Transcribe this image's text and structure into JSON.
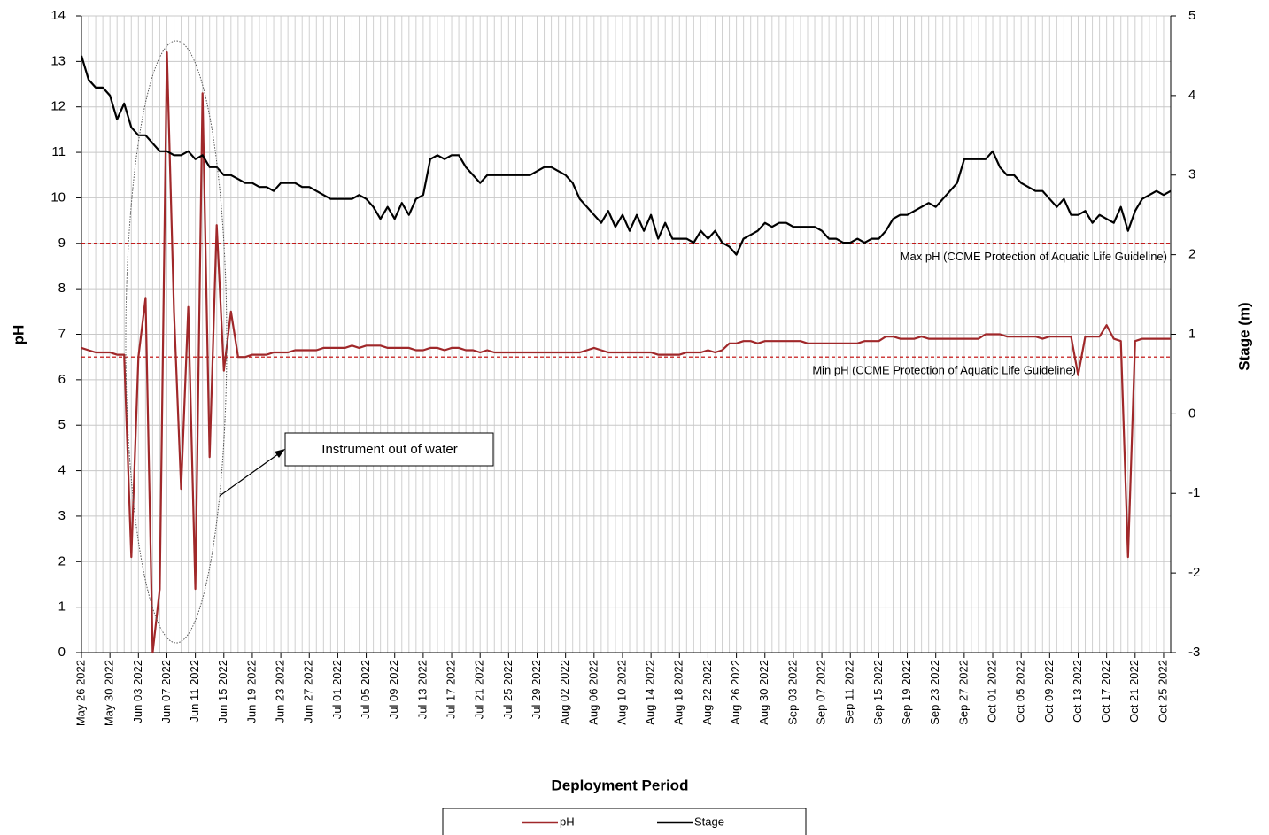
{
  "chart_data": {
    "type": "line",
    "x_label": "Deployment Period",
    "y_label": "pH",
    "y2_label": "Stage (m)",
    "xlim": [
      "2022-05-26",
      "2022-10-26"
    ],
    "ylim": [
      0,
      14
    ],
    "yticks": [
      0,
      1,
      2,
      3,
      4,
      5,
      6,
      7,
      8,
      9,
      10,
      11,
      12,
      13,
      14
    ],
    "y2lim": [
      -3,
      5
    ],
    "y2ticks": [
      -3,
      -2,
      -1,
      0,
      1,
      2,
      3,
      4,
      5
    ],
    "grid": true,
    "legend": "bottom",
    "xticks": [
      {
        "value": "2022-05-26",
        "label": "May 26 2022"
      },
      {
        "value": "2022-05-30",
        "label": "May 30 2022"
      },
      {
        "value": "2022-06-03",
        "label": "Jun 03 2022"
      },
      {
        "value": "2022-06-07",
        "label": "Jun 07 2022"
      },
      {
        "value": "2022-06-11",
        "label": "Jun 11 2022"
      },
      {
        "value": "2022-06-15",
        "label": "Jun 15 2022"
      },
      {
        "value": "2022-06-19",
        "label": "Jun 19 2022"
      },
      {
        "value": "2022-06-23",
        "label": "Jun 23 2022"
      },
      {
        "value": "2022-06-27",
        "label": "Jun 27 2022"
      },
      {
        "value": "2022-07-01",
        "label": "Jul 01 2022"
      },
      {
        "value": "2022-07-05",
        "label": "Jul 05 2022"
      },
      {
        "value": "2022-07-09",
        "label": "Jul 09 2022"
      },
      {
        "value": "2022-07-13",
        "label": "Jul 13 2022"
      },
      {
        "value": "2022-07-17",
        "label": "Jul 17 2022"
      },
      {
        "value": "2022-07-21",
        "label": "Jul 21 2022"
      },
      {
        "value": "2022-07-25",
        "label": "Jul 25 2022"
      },
      {
        "value": "2022-07-29",
        "label": "Jul 29 2022"
      },
      {
        "value": "2022-08-02",
        "label": "Aug 02 2022"
      },
      {
        "value": "2022-08-06",
        "label": "Aug 06 2022"
      },
      {
        "value": "2022-08-10",
        "label": "Aug 10 2022"
      },
      {
        "value": "2022-08-14",
        "label": "Aug 14 2022"
      },
      {
        "value": "2022-08-18",
        "label": "Aug 18 2022"
      },
      {
        "value": "2022-08-22",
        "label": "Aug 22 2022"
      },
      {
        "value": "2022-08-26",
        "label": "Aug 26 2022"
      },
      {
        "value": "2022-08-30",
        "label": "Aug 30 2022"
      },
      {
        "value": "2022-09-03",
        "label": "Sep 03 2022"
      },
      {
        "value": "2022-09-07",
        "label": "Sep 07 2022"
      },
      {
        "value": "2022-09-11",
        "label": "Sep 11 2022"
      },
      {
        "value": "2022-09-15",
        "label": "Sep 15 2022"
      },
      {
        "value": "2022-09-19",
        "label": "Sep 19 2022"
      },
      {
        "value": "2022-09-23",
        "label": "Sep 23 2022"
      },
      {
        "value": "2022-09-27",
        "label": "Sep 27 2022"
      },
      {
        "value": "2022-10-01",
        "label": "Oct 01 2022"
      },
      {
        "value": "2022-10-05",
        "label": "Oct 05 2022"
      },
      {
        "value": "2022-10-09",
        "label": "Oct 09 2022"
      },
      {
        "value": "2022-10-13",
        "label": "Oct 13 2022"
      },
      {
        "value": "2022-10-17",
        "label": "Oct 17 2022"
      },
      {
        "value": "2022-10-21",
        "label": "Oct 21 2022"
      },
      {
        "value": "2022-10-25",
        "label": "Oct 25 2022"
      }
    ],
    "x": [
      "2022-05-26",
      "2022-05-27",
      "2022-05-28",
      "2022-05-29",
      "2022-05-30",
      "2022-05-31",
      "2022-06-01",
      "2022-06-02",
      "2022-06-03",
      "2022-06-04",
      "2022-06-05",
      "2022-06-06",
      "2022-06-07",
      "2022-06-08",
      "2022-06-09",
      "2022-06-10",
      "2022-06-11",
      "2022-06-12",
      "2022-06-13",
      "2022-06-14",
      "2022-06-15",
      "2022-06-16",
      "2022-06-17",
      "2022-06-18",
      "2022-06-19",
      "2022-06-20",
      "2022-06-21",
      "2022-06-22",
      "2022-06-23",
      "2022-06-24",
      "2022-06-25",
      "2022-06-26",
      "2022-06-27",
      "2022-06-28",
      "2022-06-29",
      "2022-06-30",
      "2022-07-01",
      "2022-07-02",
      "2022-07-03",
      "2022-07-04",
      "2022-07-05",
      "2022-07-06",
      "2022-07-07",
      "2022-07-08",
      "2022-07-09",
      "2022-07-10",
      "2022-07-11",
      "2022-07-12",
      "2022-07-13",
      "2022-07-14",
      "2022-07-15",
      "2022-07-16",
      "2022-07-17",
      "2022-07-18",
      "2022-07-19",
      "2022-07-20",
      "2022-07-21",
      "2022-07-22",
      "2022-07-23",
      "2022-07-24",
      "2022-07-25",
      "2022-07-26",
      "2022-07-27",
      "2022-07-28",
      "2022-07-29",
      "2022-07-30",
      "2022-07-31",
      "2022-08-01",
      "2022-08-02",
      "2022-08-03",
      "2022-08-04",
      "2022-08-05",
      "2022-08-06",
      "2022-08-07",
      "2022-08-08",
      "2022-08-09",
      "2022-08-10",
      "2022-08-11",
      "2022-08-12",
      "2022-08-13",
      "2022-08-14",
      "2022-08-15",
      "2022-08-16",
      "2022-08-17",
      "2022-08-18",
      "2022-08-19",
      "2022-08-20",
      "2022-08-21",
      "2022-08-22",
      "2022-08-23",
      "2022-08-24",
      "2022-08-25",
      "2022-08-26",
      "2022-08-27",
      "2022-08-28",
      "2022-08-29",
      "2022-08-30",
      "2022-08-31",
      "2022-09-01",
      "2022-09-02",
      "2022-09-03",
      "2022-09-04",
      "2022-09-05",
      "2022-09-06",
      "2022-09-07",
      "2022-09-08",
      "2022-09-09",
      "2022-09-10",
      "2022-09-11",
      "2022-09-12",
      "2022-09-13",
      "2022-09-14",
      "2022-09-15",
      "2022-09-16",
      "2022-09-17",
      "2022-09-18",
      "2022-09-19",
      "2022-09-20",
      "2022-09-21",
      "2022-09-22",
      "2022-09-23",
      "2022-09-24",
      "2022-09-25",
      "2022-09-26",
      "2022-09-27",
      "2022-09-28",
      "2022-09-29",
      "2022-09-30",
      "2022-10-01",
      "2022-10-02",
      "2022-10-03",
      "2022-10-04",
      "2022-10-05",
      "2022-10-06",
      "2022-10-07",
      "2022-10-08",
      "2022-10-09",
      "2022-10-10",
      "2022-10-11",
      "2022-10-12",
      "2022-10-13",
      "2022-10-14",
      "2022-10-15",
      "2022-10-16",
      "2022-10-17",
      "2022-10-18",
      "2022-10-19",
      "2022-10-20",
      "2022-10-21",
      "2022-10-22",
      "2022-10-23",
      "2022-10-24",
      "2022-10-25",
      "2022-10-26"
    ],
    "series": [
      {
        "name": "pH",
        "color": "#a0282a",
        "values": [
          6.7,
          6.65,
          6.6,
          6.6,
          6.6,
          6.55,
          6.55,
          2.1,
          6.5,
          7.8,
          0,
          1.4,
          13.2,
          7.5,
          3.6,
          7.6,
          1.4,
          12.3,
          4.3,
          9.4,
          6.2,
          7.5,
          6.5,
          6.5,
          6.55,
          6.55,
          6.55,
          6.6,
          6.6,
          6.6,
          6.65,
          6.65,
          6.65,
          6.65,
          6.7,
          6.7,
          6.7,
          6.7,
          6.75,
          6.7,
          6.75,
          6.75,
          6.75,
          6.7,
          6.7,
          6.7,
          6.7,
          6.65,
          6.65,
          6.7,
          6.7,
          6.65,
          6.7,
          6.7,
          6.65,
          6.65,
          6.6,
          6.65,
          6.6,
          6.6,
          6.6,
          6.6,
          6.6,
          6.6,
          6.6,
          6.6,
          6.6,
          6.6,
          6.6,
          6.6,
          6.6,
          6.65,
          6.7,
          6.65,
          6.6,
          6.6,
          6.6,
          6.6,
          6.6,
          6.6,
          6.6,
          6.55,
          6.55,
          6.55,
          6.55,
          6.6,
          6.6,
          6.6,
          6.65,
          6.6,
          6.65,
          6.8,
          6.8,
          6.85,
          6.85,
          6.8,
          6.85,
          6.85,
          6.85,
          6.85,
          6.85,
          6.85,
          6.8,
          6.8,
          6.8,
          6.8,
          6.8,
          6.8,
          6.8,
          6.8,
          6.85,
          6.85,
          6.85,
          6.95,
          6.95,
          6.9,
          6.9,
          6.9,
          6.95,
          6.9,
          6.9,
          6.9,
          6.9,
          6.9,
          6.9,
          6.9,
          6.9,
          7.0,
          7.0,
          7.0,
          6.95,
          6.95,
          6.95,
          6.95,
          6.95,
          6.9,
          6.95,
          6.95,
          6.95,
          6.95,
          6.1,
          6.95,
          6.95,
          6.95,
          7.2,
          6.9,
          6.85,
          2.1,
          6.85,
          6.9,
          6.9,
          6.9,
          6.9,
          6.9
        ]
      },
      {
        "name": "Stage",
        "color": "#000000",
        "axis": "y2",
        "values": [
          4.5,
          4.2,
          4.1,
          4.1,
          4.0,
          3.7,
          3.9,
          3.6,
          3.5,
          3.5,
          3.4,
          3.3,
          3.3,
          3.25,
          3.25,
          3.3,
          3.2,
          3.25,
          3.1,
          3.1,
          3.0,
          3.0,
          2.95,
          2.9,
          2.9,
          2.85,
          2.85,
          2.8,
          2.9,
          2.9,
          2.9,
          2.85,
          2.85,
          2.8,
          2.75,
          2.7,
          2.7,
          2.7,
          2.7,
          2.75,
          2.7,
          2.6,
          2.45,
          2.6,
          2.45,
          2.65,
          2.5,
          2.7,
          2.75,
          3.2,
          3.25,
          3.2,
          3.25,
          3.25,
          3.1,
          3.0,
          2.9,
          3.0,
          3.0,
          3.0,
          3.0,
          3.0,
          3.0,
          3.0,
          3.05,
          3.1,
          3.1,
          3.05,
          3.0,
          2.9,
          2.7,
          2.6,
          2.5,
          2.4,
          2.55,
          2.35,
          2.5,
          2.3,
          2.5,
          2.3,
          2.5,
          2.2,
          2.4,
          2.2,
          2.2,
          2.2,
          2.15,
          2.3,
          2.2,
          2.3,
          2.15,
          2.1,
          2.0,
          2.2,
          2.25,
          2.3,
          2.4,
          2.35,
          2.4,
          2.4,
          2.35,
          2.35,
          2.35,
          2.35,
          2.3,
          2.2,
          2.2,
          2.15,
          2.15,
          2.2,
          2.15,
          2.2,
          2.2,
          2.3,
          2.45,
          2.5,
          2.5,
          2.55,
          2.6,
          2.65,
          2.6,
          2.7,
          2.8,
          2.9,
          3.2,
          3.2,
          3.2,
          3.2,
          3.3,
          3.1,
          3.0,
          3.0,
          2.9,
          2.85,
          2.8,
          2.8,
          2.7,
          2.6,
          2.7,
          2.5,
          2.5,
          2.55,
          2.4,
          2.5,
          2.45,
          2.4,
          2.6,
          2.3,
          2.55,
          2.7,
          2.75,
          2.8,
          2.75,
          2.8
        ]
      }
    ],
    "guidelines": [
      {
        "value": 9,
        "label": "Max pH  (CCME  Protection of Aquatic Life Guideline)",
        "color": "#c00000"
      },
      {
        "value": 6.5,
        "label": "Min pH  (CCME  Protection of Aquatic Life Guideline)",
        "color": "#c00000"
      }
    ],
    "annotation": "Instrument out of water"
  }
}
